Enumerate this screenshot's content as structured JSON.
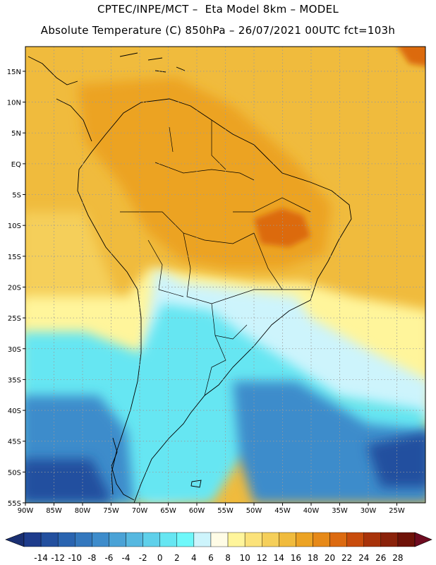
{
  "titles": {
    "line1": "CPTEC/INPE/MCT –  Eta Model 8km – MODEL",
    "line2": "Absolute Temperature (C) 850hPa – 26/07/2021 00UTC fct=103h"
  },
  "map": {
    "lon_range": [
      -90,
      -20
    ],
    "lat_range": [
      -55,
      19
    ],
    "lat_ticks": [
      {
        "lat": 15,
        "label": "15N"
      },
      {
        "lat": 10,
        "label": "10N"
      },
      {
        "lat": 5,
        "label": "5N"
      },
      {
        "lat": 0,
        "label": "EQ"
      },
      {
        "lat": -5,
        "label": "5S"
      },
      {
        "lat": -10,
        "label": "10S"
      },
      {
        "lat": -15,
        "label": "15S"
      },
      {
        "lat": -20,
        "label": "20S"
      },
      {
        "lat": -25,
        "label": "25S"
      },
      {
        "lat": -30,
        "label": "30S"
      },
      {
        "lat": -35,
        "label": "35S"
      },
      {
        "lat": -40,
        "label": "40S"
      },
      {
        "lat": -45,
        "label": "45S"
      },
      {
        "lat": -50,
        "label": "50S"
      },
      {
        "lat": -55,
        "label": "55S"
      }
    ],
    "lon_ticks": [
      {
        "lon": -90,
        "label": "90W"
      },
      {
        "lon": -85,
        "label": "85W"
      },
      {
        "lon": -80,
        "label": "80W"
      },
      {
        "lon": -75,
        "label": "75W"
      },
      {
        "lon": -70,
        "label": "70W"
      },
      {
        "lon": -65,
        "label": "65W"
      },
      {
        "lon": -60,
        "label": "60W"
      },
      {
        "lon": -55,
        "label": "55W"
      },
      {
        "lon": -50,
        "label": "50W"
      },
      {
        "lon": -45,
        "label": "45W"
      },
      {
        "lon": -40,
        "label": "40W"
      },
      {
        "lon": -35,
        "label": "35W"
      },
      {
        "lon": -30,
        "label": "30W"
      },
      {
        "lon": -25,
        "label": "25W"
      }
    ]
  },
  "colorbar": {
    "labels": [
      "-14",
      "-12",
      "-10",
      "-8",
      "-6",
      "-4",
      "-2",
      "0",
      "2",
      "4",
      "6",
      "8",
      "10",
      "12",
      "14",
      "16",
      "18",
      "20",
      "22",
      "24",
      "26",
      "28"
    ],
    "colors": [
      "#1e3c8c",
      "#23509f",
      "#2a64b0",
      "#3478be",
      "#3e8ccb",
      "#4aa2d6",
      "#56b8e0",
      "#5fd0ea",
      "#66e6f2",
      "#6ef8fa",
      "#cdf4fc",
      "#fffce6",
      "#fff59b",
      "#fbe27a",
      "#f5cf5a",
      "#f0bb3d",
      "#eca324",
      "#e68918",
      "#dc6a10",
      "#c84c0c",
      "#a8330a",
      "#8a220a",
      "#6e1208"
    ],
    "low_arrow_color": "#1a2f72",
    "high_arrow_color": "#6e0b20"
  },
  "field_colors": {
    "ocean_north": "#f0bb3d",
    "amazon": "#eca324",
    "hot_core": "#dc6a10",
    "pacific_mid": "#f5cf5a",
    "south_warm": "#fff59b",
    "cold_light": "#cdf4fc",
    "cold_cyan": "#66e6f2",
    "cold_blue": "#3e8ccb",
    "cold_deep": "#23509f"
  }
}
